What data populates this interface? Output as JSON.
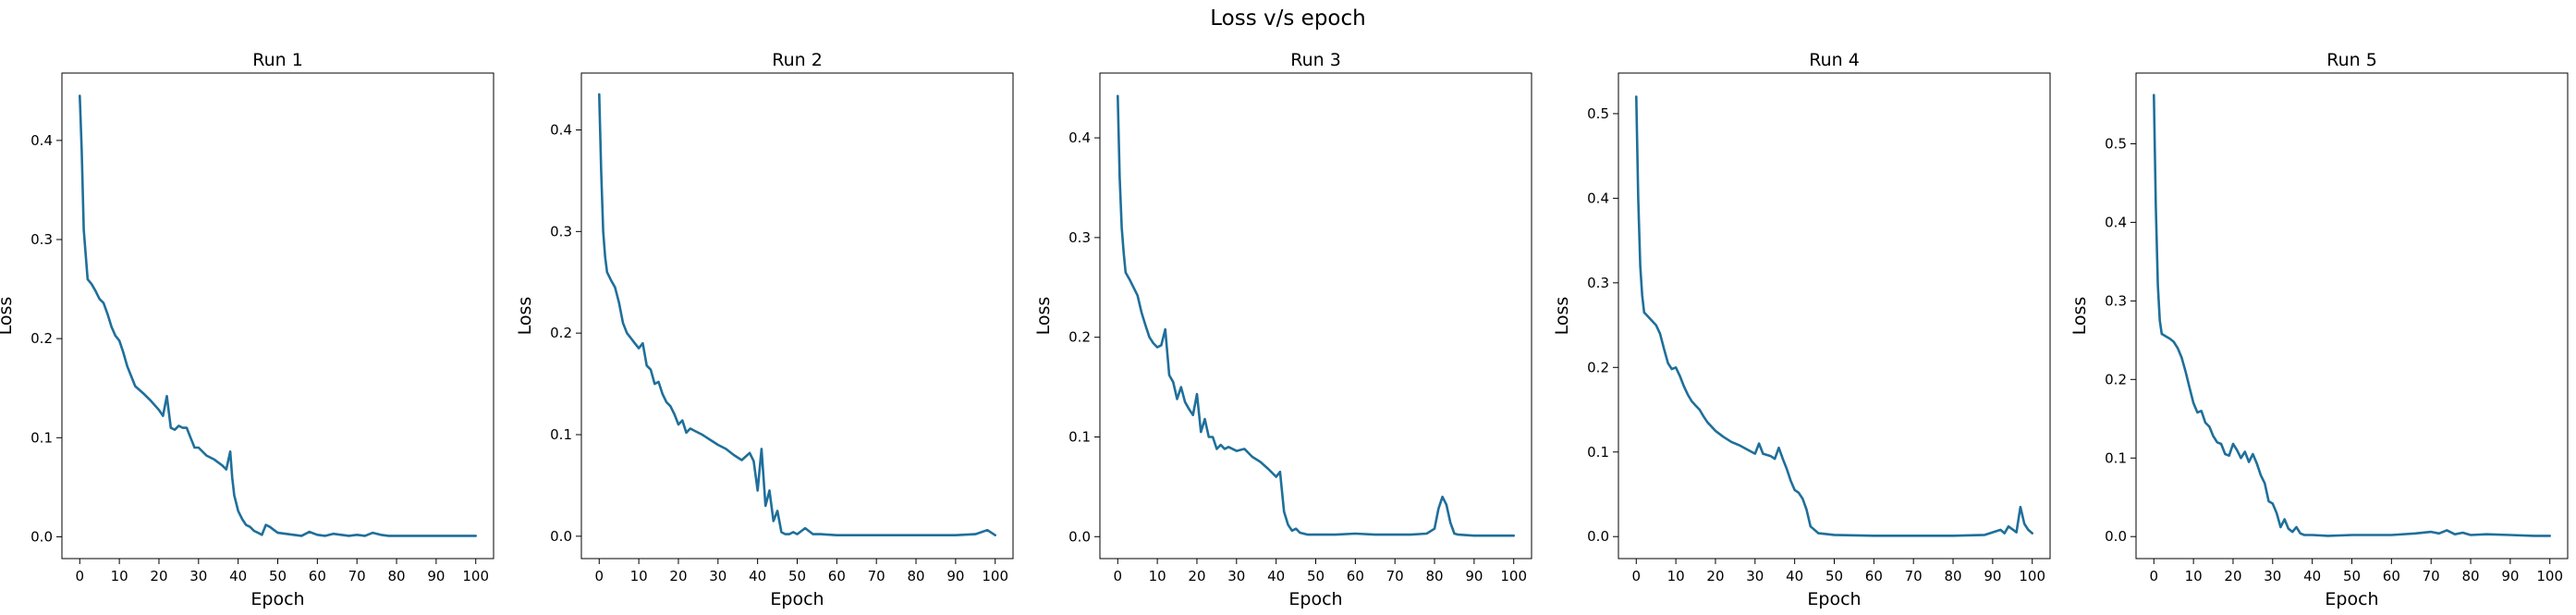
{
  "suptitle": "Loss v/s epoch",
  "chart_data": [
    {
      "type": "line",
      "title": "Run 1",
      "xlabel": "Epoch",
      "ylabel": "Loss",
      "xlim": [
        -4.5,
        104.5
      ],
      "ylim": [
        -0.022,
        0.468
      ],
      "xticks": [
        0,
        10,
        20,
        30,
        40,
        50,
        60,
        70,
        80,
        90,
        100
      ],
      "yticks": [
        0.0,
        0.1,
        0.2,
        0.3,
        0.4
      ],
      "ytick_labels": [
        "0.0",
        "0.1",
        "0.2",
        "0.3",
        "0.4"
      ],
      "grid": false,
      "line_color": "#1f6f9a",
      "x": [
        0,
        0.5,
        1,
        1.5,
        2,
        3,
        4,
        5,
        6,
        7,
        8,
        9,
        10,
        11,
        12,
        14,
        16,
        18,
        20,
        21,
        22,
        23,
        24,
        25,
        26,
        27,
        28,
        29,
        30,
        32,
        34,
        36,
        37,
        38,
        38.5,
        39,
        40,
        41,
        42,
        43,
        44,
        45,
        46,
        47,
        48,
        49,
        50,
        52,
        54,
        56,
        58,
        60,
        62,
        64,
        66,
        68,
        70,
        72,
        74,
        76,
        78,
        80,
        84,
        88,
        92,
        96,
        100
      ],
      "y": [
        0.445,
        0.39,
        0.31,
        0.285,
        0.26,
        0.255,
        0.248,
        0.24,
        0.236,
        0.225,
        0.212,
        0.203,
        0.198,
        0.186,
        0.172,
        0.152,
        0.145,
        0.137,
        0.128,
        0.122,
        0.142,
        0.11,
        0.108,
        0.112,
        0.11,
        0.11,
        0.1,
        0.09,
        0.09,
        0.082,
        0.078,
        0.072,
        0.068,
        0.086,
        0.06,
        0.042,
        0.026,
        0.018,
        0.012,
        0.01,
        0.006,
        0.004,
        0.002,
        0.012,
        0.01,
        0.007,
        0.004,
        0.003,
        0.002,
        0.001,
        0.005,
        0.002,
        0.001,
        0.003,
        0.002,
        0.001,
        0.002,
        0.001,
        0.004,
        0.002,
        0.001,
        0.001,
        0.001,
        0.001,
        0.001,
        0.001,
        0.001
      ]
    },
    {
      "type": "line",
      "title": "Run 2",
      "xlabel": "Epoch",
      "ylabel": "Loss",
      "xlim": [
        -4.5,
        104.5
      ],
      "ylim": [
        -0.022,
        0.456
      ],
      "xticks": [
        0,
        10,
        20,
        30,
        40,
        50,
        60,
        70,
        80,
        90,
        100
      ],
      "yticks": [
        0.0,
        0.1,
        0.2,
        0.3,
        0.4
      ],
      "ytick_labels": [
        "0.0",
        "0.1",
        "0.2",
        "0.3",
        "0.4"
      ],
      "grid": false,
      "line_color": "#1f6f9a",
      "x": [
        0,
        0.5,
        1,
        1.5,
        2,
        3,
        4,
        5,
        6,
        7,
        8,
        9,
        10,
        11,
        12,
        13,
        14,
        15,
        16,
        17,
        18,
        19,
        20,
        21,
        22,
        23,
        24,
        26,
        28,
        30,
        32,
        34,
        36,
        38,
        39,
        40,
        41,
        42,
        43,
        44,
        45,
        46,
        47,
        48,
        49,
        50,
        52,
        54,
        56,
        60,
        70,
        80,
        90,
        95,
        98,
        100
      ],
      "y": [
        0.435,
        0.36,
        0.3,
        0.275,
        0.26,
        0.252,
        0.245,
        0.23,
        0.21,
        0.2,
        0.195,
        0.19,
        0.185,
        0.19,
        0.168,
        0.164,
        0.15,
        0.152,
        0.14,
        0.132,
        0.128,
        0.12,
        0.11,
        0.114,
        0.102,
        0.106,
        0.104,
        0.1,
        0.095,
        0.09,
        0.086,
        0.08,
        0.075,
        0.082,
        0.074,
        0.045,
        0.086,
        0.03,
        0.045,
        0.015,
        0.025,
        0.004,
        0.002,
        0.002,
        0.004,
        0.002,
        0.008,
        0.002,
        0.002,
        0.001,
        0.001,
        0.001,
        0.001,
        0.002,
        0.006,
        0.001
      ]
    },
    {
      "type": "line",
      "title": "Run 3",
      "xlabel": "Epoch",
      "ylabel": "Loss",
      "xlim": [
        -4.5,
        104.5
      ],
      "ylim": [
        -0.022,
        0.465
      ],
      "xticks": [
        0,
        10,
        20,
        30,
        40,
        50,
        60,
        70,
        80,
        90,
        100
      ],
      "yticks": [
        0.0,
        0.1,
        0.2,
        0.3,
        0.4
      ],
      "ytick_labels": [
        "0.0",
        "0.1",
        "0.2",
        "0.3",
        "0.4"
      ],
      "grid": false,
      "line_color": "#1f6f9a",
      "x": [
        0,
        0.5,
        1,
        1.5,
        2,
        3,
        4,
        5,
        6,
        7,
        8,
        9,
        10,
        11,
        12,
        13,
        14,
        15,
        16,
        17,
        18,
        19,
        20,
        21,
        22,
        23,
        24,
        25,
        26,
        27,
        28,
        30,
        32,
        34,
        36,
        38,
        40,
        41,
        42,
        43,
        44,
        45,
        46,
        48,
        50,
        55,
        60,
        65,
        70,
        74,
        78,
        80,
        81,
        82,
        83,
        84,
        85,
        86,
        90,
        95,
        100
      ],
      "y": [
        0.442,
        0.36,
        0.31,
        0.285,
        0.265,
        0.258,
        0.25,
        0.242,
        0.225,
        0.212,
        0.2,
        0.194,
        0.19,
        0.192,
        0.208,
        0.162,
        0.155,
        0.138,
        0.15,
        0.135,
        0.128,
        0.122,
        0.143,
        0.105,
        0.118,
        0.1,
        0.1,
        0.088,
        0.092,
        0.088,
        0.09,
        0.086,
        0.088,
        0.08,
        0.075,
        0.068,
        0.06,
        0.065,
        0.025,
        0.012,
        0.006,
        0.008,
        0.004,
        0.002,
        0.002,
        0.002,
        0.003,
        0.002,
        0.002,
        0.002,
        0.003,
        0.008,
        0.028,
        0.04,
        0.032,
        0.014,
        0.003,
        0.002,
        0.001,
        0.001,
        0.001
      ]
    },
    {
      "type": "line",
      "title": "Run 4",
      "xlabel": "Epoch",
      "ylabel": "Loss",
      "xlim": [
        -4.5,
        104.5
      ],
      "ylim": [
        -0.026,
        0.548
      ],
      "xticks": [
        0,
        10,
        20,
        30,
        40,
        50,
        60,
        70,
        80,
        90,
        100
      ],
      "yticks": [
        0.0,
        0.1,
        0.2,
        0.3,
        0.4,
        0.5
      ],
      "ytick_labels": [
        "0.0",
        "0.1",
        "0.2",
        "0.3",
        "0.4",
        "0.5"
      ],
      "grid": false,
      "line_color": "#1f6f9a",
      "x": [
        0,
        0.5,
        1,
        1.5,
        2,
        3,
        4,
        5,
        6,
        7,
        8,
        9,
        10,
        11,
        12,
        13,
        14,
        15,
        16,
        17,
        18,
        20,
        22,
        24,
        26,
        28,
        30,
        31,
        32,
        34,
        35,
        36,
        37,
        38,
        39,
        40,
        41,
        42,
        43,
        44,
        46,
        50,
        60,
        70,
        80,
        88,
        90,
        92,
        93,
        94,
        96,
        97,
        98,
        99,
        100
      ],
      "y": [
        0.52,
        0.4,
        0.32,
        0.285,
        0.265,
        0.26,
        0.255,
        0.25,
        0.24,
        0.222,
        0.205,
        0.198,
        0.2,
        0.19,
        0.178,
        0.168,
        0.16,
        0.155,
        0.15,
        0.142,
        0.135,
        0.125,
        0.118,
        0.112,
        0.108,
        0.103,
        0.098,
        0.11,
        0.098,
        0.095,
        0.092,
        0.105,
        0.092,
        0.08,
        0.066,
        0.055,
        0.052,
        0.045,
        0.032,
        0.012,
        0.004,
        0.002,
        0.001,
        0.001,
        0.001,
        0.002,
        0.005,
        0.008,
        0.004,
        0.012,
        0.005,
        0.035,
        0.015,
        0.008,
        0.004
      ]
    },
    {
      "type": "line",
      "title": "Run 5",
      "xlabel": "Epoch",
      "ylabel": "Loss",
      "xlim": [
        -4.5,
        104.5
      ],
      "ylim": [
        -0.028,
        0.59
      ],
      "xticks": [
        0,
        10,
        20,
        30,
        40,
        50,
        60,
        70,
        80,
        90,
        100
      ],
      "yticks": [
        0.0,
        0.1,
        0.2,
        0.3,
        0.4,
        0.5
      ],
      "ytick_labels": [
        "0.0",
        "0.1",
        "0.2",
        "0.3",
        "0.4",
        "0.5"
      ],
      "grid": false,
      "line_color": "#1f6f9a",
      "x": [
        0,
        0.5,
        1,
        1.5,
        2,
        3,
        4,
        5,
        6,
        7,
        8,
        9,
        10,
        11,
        12,
        13,
        14,
        15,
        16,
        17,
        18,
        19,
        20,
        21,
        22,
        23,
        24,
        25,
        26,
        27,
        28,
        29,
        30,
        31,
        32,
        33,
        34,
        35,
        36,
        37,
        38,
        40,
        44,
        50,
        60,
        66,
        70,
        72,
        74,
        76,
        78,
        80,
        84,
        90,
        96,
        100
      ],
      "y": [
        0.562,
        0.42,
        0.32,
        0.275,
        0.258,
        0.255,
        0.252,
        0.248,
        0.24,
        0.228,
        0.21,
        0.19,
        0.17,
        0.158,
        0.16,
        0.145,
        0.14,
        0.128,
        0.12,
        0.118,
        0.105,
        0.103,
        0.118,
        0.11,
        0.1,
        0.108,
        0.095,
        0.105,
        0.093,
        0.078,
        0.068,
        0.045,
        0.042,
        0.03,
        0.012,
        0.022,
        0.01,
        0.006,
        0.012,
        0.004,
        0.002,
        0.002,
        0.001,
        0.002,
        0.002,
        0.004,
        0.006,
        0.004,
        0.008,
        0.003,
        0.005,
        0.002,
        0.003,
        0.002,
        0.001,
        0.001
      ]
    }
  ]
}
